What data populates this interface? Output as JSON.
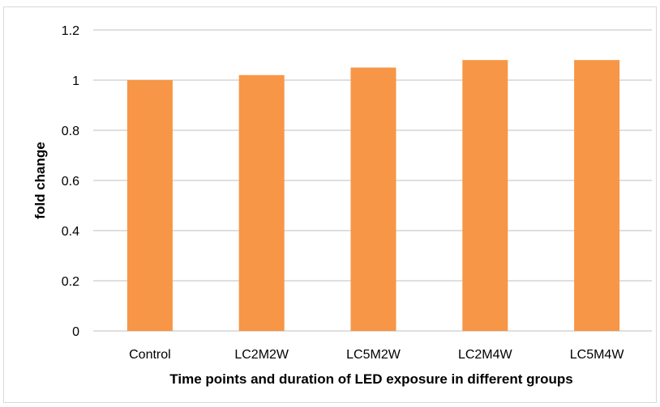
{
  "chart_data": {
    "type": "bar",
    "title": "",
    "xlabel": "Time points and duration of LED exposure in different groups",
    "ylabel": "fold change",
    "categories": [
      "Control",
      "LC2M2W",
      "LC5M2W",
      "LC2M4W",
      "LC5M4W"
    ],
    "values": [
      1.0,
      1.02,
      1.05,
      1.08,
      1.08
    ],
    "ylim": [
      0,
      1.2
    ],
    "yticks": [
      "0",
      "0.2",
      "0.4",
      "0.6",
      "0.8",
      "1",
      "1.2"
    ],
    "grid": true,
    "legend": "none",
    "bar_color": "#f79646",
    "gridline_color": "#bfbfbf"
  }
}
